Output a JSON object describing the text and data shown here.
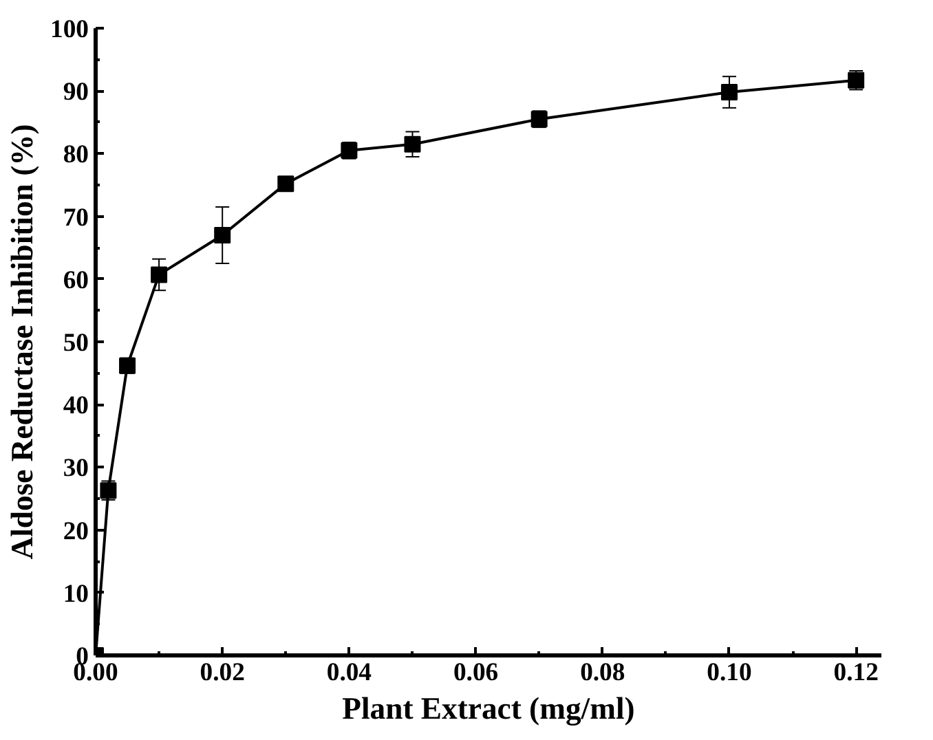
{
  "chart_data": {
    "type": "line",
    "xlabel": "Plant Extract (mg/ml)",
    "ylabel": "Aldose Reductase Inhibition (%)",
    "x": [
      0,
      0.002,
      0.005,
      0.01,
      0.02,
      0.03,
      0.04,
      0.05,
      0.07,
      0.1,
      0.12
    ],
    "series": [
      {
        "color": "#000000",
        "values": [
          0,
          26.3,
          46.2,
          60.7,
          67,
          75.2,
          80.5,
          81.5,
          85.5,
          89.8,
          91.7
        ],
        "errors": [
          null,
          1.5,
          1.2,
          2.5,
          4.5,
          0.5,
          1.3,
          2,
          1.3,
          2.5,
          1.5
        ]
      }
    ],
    "xlim": [
      0,
      0.124
    ],
    "ylim": [
      0,
      100
    ],
    "xticks": [
      {
        "value": 0,
        "label": "0.00"
      },
      {
        "value": 0.02,
        "label": "0.02"
      },
      {
        "value": 0.04,
        "label": "0.04"
      },
      {
        "value": 0.06,
        "label": "0.06"
      },
      {
        "value": 0.08,
        "label": "0.08"
      },
      {
        "value": 0.1,
        "label": "0.10"
      },
      {
        "value": 0.12,
        "label": "0.12"
      }
    ],
    "yticks": [
      0,
      10,
      20,
      30,
      40,
      50,
      60,
      70,
      80,
      90,
      100
    ],
    "marker": "square",
    "line_style": "solid",
    "grid": false
  }
}
